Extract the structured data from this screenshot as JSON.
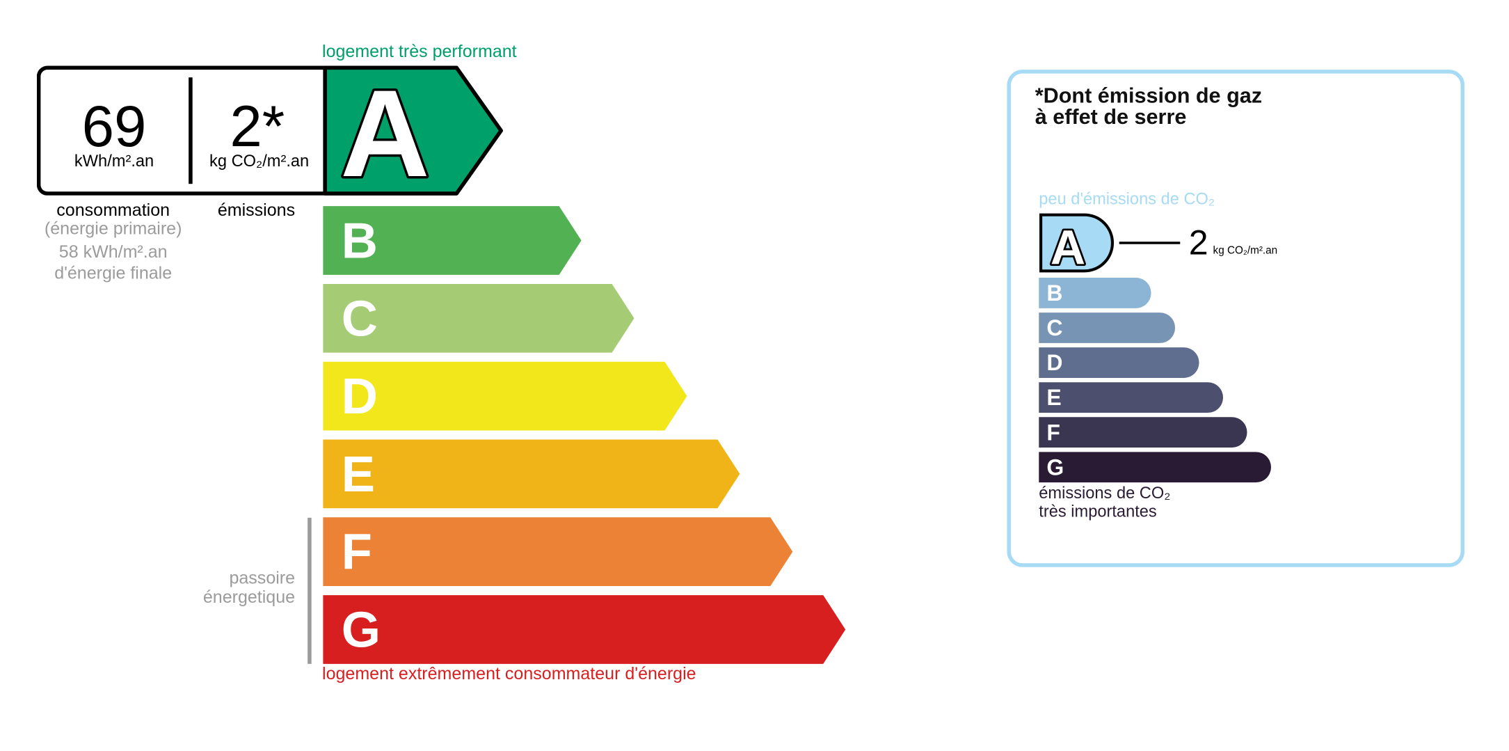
{
  "energy": {
    "top_label": "logement très performant",
    "bottom_label": "logement extrêmement consommateur d'énergie",
    "consumption_value": "69",
    "consumption_unit": "kWh/m².an",
    "emission_value": "2*",
    "emission_unit": "kg CO₂/m².an",
    "consumption_label": "consommation",
    "primary_label": "(énergie primaire)",
    "final_value": "58 kWh/m².an",
    "final_label": "d'énergie finale",
    "emission_label": "émissions",
    "passoire_line1": "passoire",
    "passoire_line2": "énergetique",
    "current_class": "A",
    "classes": [
      {
        "letter": "A",
        "color": "#00a06a"
      },
      {
        "letter": "B",
        "color": "#51b153"
      },
      {
        "letter": "C",
        "color": "#a5cc74"
      },
      {
        "letter": "D",
        "color": "#f1e71a"
      },
      {
        "letter": "E",
        "color": "#f0b418"
      },
      {
        "letter": "F",
        "color": "#eb8235"
      },
      {
        "letter": "G",
        "color": "#d71f20"
      }
    ]
  },
  "ghg": {
    "title_line1": "*Dont émission de gaz",
    "title_line2": "à effet de serre",
    "top_label": "peu d'émissions de CO₂",
    "bottom_line1": "émissions de CO₂",
    "bottom_line2": "très importantes",
    "value": "2",
    "unit": "kg CO₂/m².an",
    "current_class": "A",
    "border_color": "#a6daf5",
    "classes": [
      {
        "letter": "A",
        "color": "#a6daf5"
      },
      {
        "letter": "B",
        "color": "#8cb4d4"
      },
      {
        "letter": "C",
        "color": "#7794b5"
      },
      {
        "letter": "D",
        "color": "#5f6e8f"
      },
      {
        "letter": "E",
        "color": "#4c4f6e"
      },
      {
        "letter": "F",
        "color": "#3a3651"
      },
      {
        "letter": "G",
        "color": "#2a1b34"
      }
    ]
  }
}
